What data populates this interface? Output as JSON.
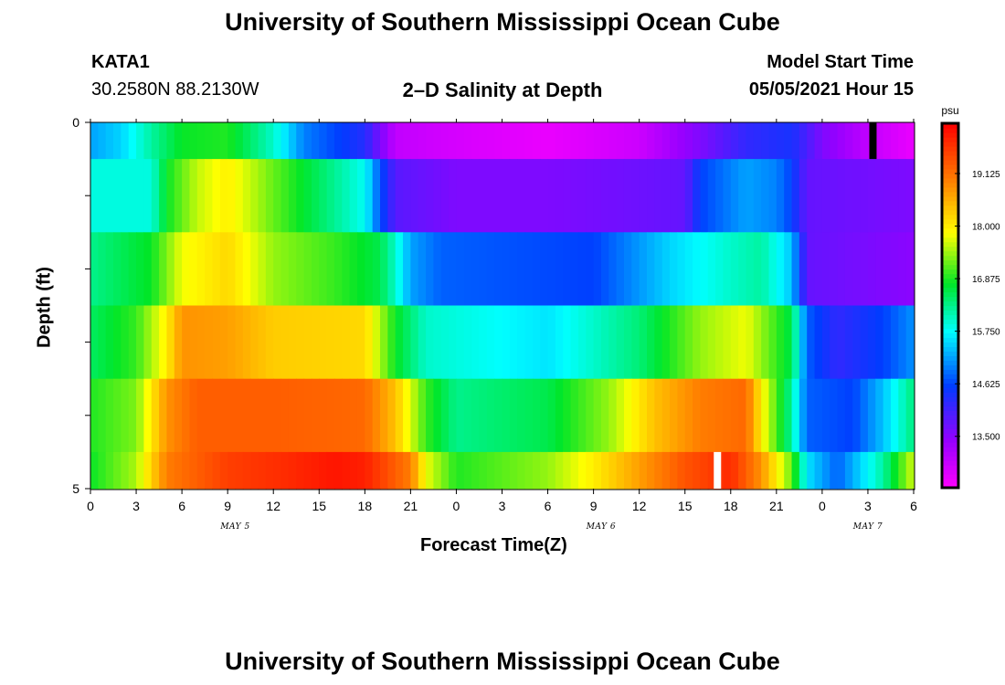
{
  "header": {
    "title": "University of Southern Mississippi Ocean Cube",
    "footer_title": "University of Southern Mississippi Ocean Cube",
    "station": "KATA1",
    "coords": "30.2580N  88.2130W",
    "plot_title": "2–D Salinity at Depth",
    "model_start_label": "Model Start Time",
    "model_start_value": "05/05/2021 Hour 15"
  },
  "chart_data": {
    "type": "heatmap",
    "title": "2–D Salinity at Depth",
    "xlabel": "Forecast Time(Z)",
    "ylabel": "Depth (ft)",
    "x_tick_labels": [
      "0",
      "3",
      "6",
      "9",
      "12",
      "15",
      "18",
      "21",
      "0",
      "3",
      "6",
      "9",
      "12",
      "15",
      "18",
      "21",
      "0",
      "3",
      "6"
    ],
    "day_labels": [
      "MAY 5",
      "MAY 6",
      "MAY 7"
    ],
    "y_tick_labels": [
      "0",
      "5"
    ],
    "x_range_hours": [
      0,
      54
    ],
    "y_range_ft": [
      0,
      5
    ],
    "colorbar": {
      "unit": "psu",
      "min": 12.4,
      "max": 20.2,
      "tick_values": [
        13.5,
        14.625,
        15.75,
        16.875,
        18.0,
        19.125
      ],
      "tick_labels": [
        "13.500",
        "14.625",
        "15.750",
        "16.875",
        "18.000",
        "19.125"
      ]
    },
    "gaps": [
      {
        "depth_band": 0,
        "hour": 51.3,
        "color": "#000000"
      },
      {
        "depth_band": 5,
        "hour": 41.1,
        "color": "#ffffff"
      }
    ],
    "depth_bands": [
      {
        "depth_ft": [
          0.0,
          0.5
        ],
        "keyframes": [
          [
            0,
            15.2
          ],
          [
            2,
            15.5
          ],
          [
            4,
            16.2
          ],
          [
            6,
            16.8
          ],
          [
            9,
            16.9
          ],
          [
            12,
            16.0
          ],
          [
            14,
            15.0
          ],
          [
            18,
            14.3
          ],
          [
            20,
            13.0
          ],
          [
            24,
            12.8
          ],
          [
            30,
            12.6
          ],
          [
            36,
            12.9
          ],
          [
            40,
            13.6
          ],
          [
            43,
            14.2
          ],
          [
            46,
            14.4
          ],
          [
            48,
            13.6
          ],
          [
            51,
            13.0
          ],
          [
            54,
            12.6
          ]
        ]
      },
      {
        "depth_ft": [
          0.5,
          1.5
        ],
        "keyframes": [
          [
            0,
            15.9
          ],
          [
            4,
            15.9
          ],
          [
            5,
            16.8
          ],
          [
            7,
            17.6
          ],
          [
            9,
            18.0
          ],
          [
            12,
            17.2
          ],
          [
            15,
            16.5
          ],
          [
            18,
            15.8
          ],
          [
            19,
            14.7
          ],
          [
            20,
            13.9
          ],
          [
            24,
            13.6
          ],
          [
            30,
            13.6
          ],
          [
            39,
            13.8
          ],
          [
            40,
            14.6
          ],
          [
            43,
            15.2
          ],
          [
            45,
            15.0
          ],
          [
            46,
            14.6
          ],
          [
            47,
            13.8
          ],
          [
            54,
            13.6
          ]
        ]
      },
      {
        "depth_ft": [
          1.5,
          2.5
        ],
        "keyframes": [
          [
            0,
            16.3
          ],
          [
            4,
            16.8
          ],
          [
            6,
            17.8
          ],
          [
            9,
            18.2
          ],
          [
            12,
            17.4
          ],
          [
            16,
            17.0
          ],
          [
            19,
            16.6
          ],
          [
            20,
            16.0
          ],
          [
            21,
            15.2
          ],
          [
            23,
            14.8
          ],
          [
            33,
            14.6
          ],
          [
            38,
            15.5
          ],
          [
            42,
            16.0
          ],
          [
            44,
            16.2
          ],
          [
            46,
            15.4
          ],
          [
            47,
            13.8
          ],
          [
            54,
            13.5
          ]
        ]
      },
      {
        "depth_ft": [
          2.5,
          3.5
        ],
        "keyframes": [
          [
            0,
            16.5
          ],
          [
            3,
            17.0
          ],
          [
            5,
            18.0
          ],
          [
            6,
            18.8
          ],
          [
            9,
            18.7
          ],
          [
            12,
            18.3
          ],
          [
            18,
            18.2
          ],
          [
            20,
            16.8
          ],
          [
            22,
            16.0
          ],
          [
            30,
            15.6
          ],
          [
            36,
            16.4
          ],
          [
            40,
            17.4
          ],
          [
            43,
            17.8
          ],
          [
            46,
            16.6
          ],
          [
            47,
            14.8
          ],
          [
            49,
            14.2
          ],
          [
            52,
            14.6
          ],
          [
            54,
            15.1
          ]
        ]
      },
      {
        "depth_ft": [
          3.5,
          4.5
        ],
        "keyframes": [
          [
            0,
            16.9
          ],
          [
            3,
            17.3
          ],
          [
            5,
            18.8
          ],
          [
            7,
            19.3
          ],
          [
            12,
            19.3
          ],
          [
            18,
            19.2
          ],
          [
            20,
            18.4
          ],
          [
            22,
            17.0
          ],
          [
            24,
            16.3
          ],
          [
            30,
            16.6
          ],
          [
            34,
            17.4
          ],
          [
            37,
            18.4
          ],
          [
            40,
            19.0
          ],
          [
            43,
            19.2
          ],
          [
            44,
            18.0
          ],
          [
            46,
            16.2
          ],
          [
            47,
            14.8
          ],
          [
            50,
            14.6
          ],
          [
            52,
            15.4
          ],
          [
            54,
            16.4
          ]
        ]
      },
      {
        "depth_ft": [
          4.5,
          5.0
        ],
        "keyframes": [
          [
            0,
            16.8
          ],
          [
            3,
            17.5
          ],
          [
            5,
            19.0
          ],
          [
            9,
            19.6
          ],
          [
            13,
            19.8
          ],
          [
            16,
            20.0
          ],
          [
            18,
            19.9
          ],
          [
            21,
            19.0
          ],
          [
            22,
            17.8
          ],
          [
            24,
            16.9
          ],
          [
            30,
            17.4
          ],
          [
            33,
            18.0
          ],
          [
            36,
            18.7
          ],
          [
            39,
            19.4
          ],
          [
            42,
            19.8
          ],
          [
            44,
            18.8
          ],
          [
            46,
            17.2
          ],
          [
            47,
            15.6
          ],
          [
            49,
            14.8
          ],
          [
            52,
            16.2
          ],
          [
            54,
            17.7
          ]
        ]
      }
    ]
  }
}
